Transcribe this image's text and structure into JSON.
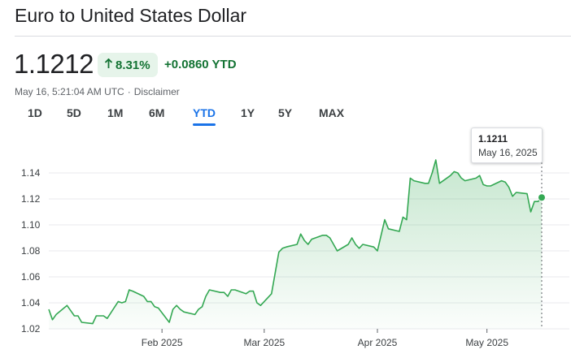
{
  "title": "Euro to United States Dollar",
  "price": "1.1212",
  "change": {
    "percent": "8.31%",
    "absolute": "+0.0860 YTD",
    "direction": "up",
    "icon": "arrow-up-icon",
    "color": "#137333",
    "background": "#e6f4ea"
  },
  "meta": {
    "timestamp": "May 16, 5:21:04 AM UTC",
    "separator": "·",
    "disclaimer": "Disclaimer"
  },
  "tabs": [
    {
      "label": "1D",
      "active": false
    },
    {
      "label": "5D",
      "active": false
    },
    {
      "label": "1M",
      "active": false
    },
    {
      "label": "6M",
      "active": false
    },
    {
      "label": "YTD",
      "active": true
    },
    {
      "label": "1Y",
      "active": false
    },
    {
      "label": "5Y",
      "active": false
    },
    {
      "label": "MAX",
      "active": false
    }
  ],
  "tooltip": {
    "value": "1.1211",
    "date": "May 16, 2025"
  },
  "colors": {
    "line": "#34a853",
    "accent": "#1a73e8",
    "grid": "#e8eaed"
  },
  "chart_data": {
    "type": "area",
    "title": "",
    "xlabel": "",
    "ylabel": "",
    "ylim": [
      1.02,
      1.14
    ],
    "yticks": [
      "1.02",
      "1.04",
      "1.06",
      "1.08",
      "1.10",
      "1.12",
      "1.14"
    ],
    "xticks": [
      {
        "label": "Feb 2025",
        "date": "2025-02-01"
      },
      {
        "label": "Mar 2025",
        "date": "2025-03-01"
      },
      {
        "label": "Apr 2025",
        "date": "2025-04-01"
      },
      {
        "label": "May 2025",
        "date": "2025-05-01"
      }
    ],
    "grid": true,
    "series": [
      {
        "x": [
          "2025-01-01",
          "2025-01-02",
          "2025-01-03",
          "2025-01-06",
          "2025-01-07",
          "2025-01-08",
          "2025-01-09",
          "2025-01-10",
          "2025-01-13",
          "2025-01-14",
          "2025-01-15",
          "2025-01-16",
          "2025-01-17",
          "2025-01-20",
          "2025-01-21",
          "2025-01-22",
          "2025-01-23",
          "2025-01-24",
          "2025-01-27",
          "2025-01-28",
          "2025-01-29",
          "2025-01-30",
          "2025-01-31",
          "2025-02-03",
          "2025-02-04",
          "2025-02-05",
          "2025-02-06",
          "2025-02-07",
          "2025-02-10",
          "2025-02-11",
          "2025-02-12",
          "2025-02-13",
          "2025-02-14",
          "2025-02-17",
          "2025-02-18",
          "2025-02-19",
          "2025-02-20",
          "2025-02-21",
          "2025-02-24",
          "2025-02-25",
          "2025-02-26",
          "2025-02-27",
          "2025-02-28",
          "2025-03-03",
          "2025-03-04",
          "2025-03-05",
          "2025-03-06",
          "2025-03-07",
          "2025-03-10",
          "2025-03-11",
          "2025-03-12",
          "2025-03-13",
          "2025-03-14",
          "2025-03-17",
          "2025-03-18",
          "2025-03-19",
          "2025-03-20",
          "2025-03-21",
          "2025-03-24",
          "2025-03-25",
          "2025-03-26",
          "2025-03-27",
          "2025-03-28",
          "2025-03-31",
          "2025-04-01",
          "2025-04-02",
          "2025-04-03",
          "2025-04-04",
          "2025-04-07",
          "2025-04-08",
          "2025-04-09",
          "2025-04-10",
          "2025-04-11",
          "2025-04-14",
          "2025-04-15",
          "2025-04-16",
          "2025-04-17",
          "2025-04-18",
          "2025-04-21",
          "2025-04-22",
          "2025-04-23",
          "2025-04-24",
          "2025-04-25",
          "2025-04-28",
          "2025-04-29",
          "2025-04-30",
          "2025-05-01",
          "2025-05-02",
          "2025-05-05",
          "2025-05-06",
          "2025-05-07",
          "2025-05-08",
          "2025-05-09",
          "2025-05-12",
          "2025-05-13",
          "2025-05-14",
          "2025-05-15",
          "2025-05-16"
        ],
        "y": [
          1.035,
          1.027,
          1.031,
          1.038,
          1.034,
          1.03,
          1.03,
          1.025,
          1.024,
          1.03,
          1.03,
          1.03,
          1.028,
          1.041,
          1.04,
          1.041,
          1.05,
          1.049,
          1.045,
          1.041,
          1.041,
          1.037,
          1.036,
          1.025,
          1.035,
          1.038,
          1.035,
          1.033,
          1.031,
          1.035,
          1.037,
          1.045,
          1.05,
          1.048,
          1.048,
          1.045,
          1.05,
          1.05,
          1.047,
          1.049,
          1.049,
          1.04,
          1.038,
          1.047,
          1.063,
          1.079,
          1.082,
          1.083,
          1.085,
          1.093,
          1.088,
          1.085,
          1.089,
          1.092,
          1.092,
          1.09,
          1.085,
          1.08,
          1.085,
          1.09,
          1.085,
          1.082,
          1.085,
          1.083,
          1.08,
          1.092,
          1.104,
          1.097,
          1.095,
          1.106,
          1.104,
          1.136,
          1.134,
          1.132,
          1.132,
          1.14,
          1.15,
          1.132,
          1.138,
          1.141,
          1.14,
          1.136,
          1.134,
          1.136,
          1.138,
          1.131,
          1.13,
          1.13,
          1.134,
          1.133,
          1.129,
          1.122,
          1.125,
          1.124,
          1.11,
          1.118,
          1.118,
          1.1211
        ]
      }
    ],
    "last_point": {
      "x": "2025-05-16",
      "y": 1.1211
    }
  }
}
